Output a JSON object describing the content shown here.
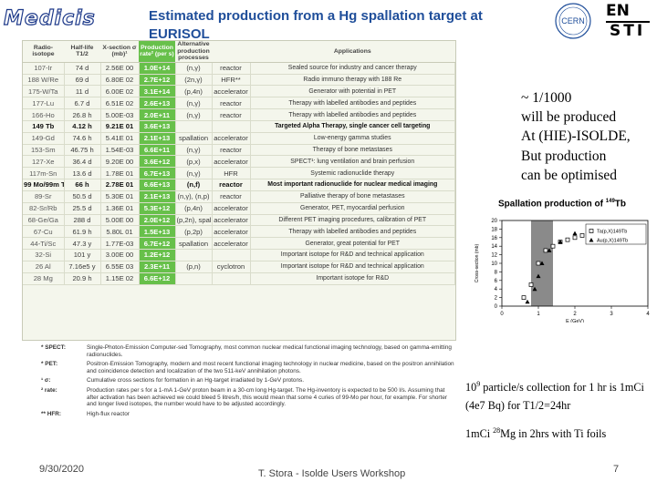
{
  "header": {
    "logo_left_text": "Medicis",
    "title": "Estimated production from a Hg spallation target at EURISOL",
    "logo_cern_text": "CERN",
    "logo_right_line1": "EN",
    "logo_right_line2": "STI"
  },
  "table": {
    "headers": [
      "Radio-isotope",
      "Half-life T1/2",
      "X-section σ (mb)¹",
      "Production rate² (per s)",
      "Alternative production processes",
      "",
      "Applications"
    ],
    "rows": [
      [
        "107-Ir",
        "74 d",
        "2.56E 00",
        "1.0E+14",
        "(n,γ)",
        "reactor",
        "Sealed source for industry and cancer therapy"
      ],
      [
        "188 W/Re",
        "69 d",
        "6.80E 02",
        "2.7E+12",
        "(2n,γ)",
        "HFR**",
        "Radio immuno therapy with 188 Re"
      ],
      [
        "175-W/Ta",
        "11 d",
        "6.00E 02",
        "3.1E+14",
        "(p,4n)",
        "accelerator",
        "Generator with potential in PET"
      ],
      [
        "177-Lu",
        "6.7 d",
        "6.51E 02",
        "2.6E+13",
        "(n,γ)",
        "reactor",
        "Therapy with labelled antibodies and peptides"
      ],
      [
        "166-Ho",
        "26.8 h",
        "5.00E-03",
        "2.0E+11",
        "(n,γ)",
        "reactor",
        "Therapy with labelled antibodies and peptides"
      ],
      [
        "149 Tb",
        "4.12 h",
        "9.21E 01",
        "3.6E+13",
        "",
        "",
        "Targeted Alpha Therapy, single cancer cell targeting"
      ],
      [
        "149-Gd",
        "74.6 h",
        "5.41E 01",
        "2.1E+13",
        "spallation",
        "accelerator",
        "Low-energy gamma studies"
      ],
      [
        "153-Sm",
        "46.75 h",
        "1.54E-03",
        "6.6E+11",
        "(n,γ)",
        "reactor",
        "Therapy of bone metastases"
      ],
      [
        "127-Xe",
        "36.4 d",
        "9.20E 00",
        "3.6E+12",
        "(p,x)",
        "accelerator",
        "SPECT¹: lung ventilation and brain perfusion"
      ],
      [
        "117m-Sn",
        "13.6 d",
        "1.78E 01",
        "6.7E+13",
        "(n,γ)",
        "HFR",
        "Systemic radionuclide therapy"
      ],
      [
        "99 Mo/99m Tc",
        "66 h",
        "2.78E 01",
        "6.6E+13",
        "(n,f)",
        "reactor",
        "Most important radionuclide for nuclear medical imaging"
      ],
      [
        "89-Sr",
        "50.5 d",
        "5.30E 01",
        "2.1E+13",
        "(n,γ), (n,p)",
        "reactor",
        "Palliative therapy of bone metastases"
      ],
      [
        "82-Sr/Rb",
        "25.5 d",
        "1.36E 01",
        "5.3E+12",
        "(p,4n)",
        "accelerator",
        "Generator, PET, myocardial perfusion"
      ],
      [
        "68-Ge/Ga",
        "288 d",
        "5.00E 00",
        "2.0E+12",
        "(p,2n), spall",
        "accelerator",
        "Different PET imaging procedures, calibration of PET"
      ],
      [
        "67-Cu",
        "61.9 h",
        "5.80L 01",
        "1.5E+13",
        "(p,2p)",
        "accelerator",
        "Therapy with labelled antibodies and peptides"
      ],
      [
        "44-Ti/Sc",
        "47.3 y",
        "1.77E-03",
        "6.7E+12",
        "spallation",
        "accelerator",
        "Generator, great potential for PET"
      ],
      [
        "32-Si",
        "101 y",
        "3.00E 00",
        "1.2E+12",
        "",
        "",
        "Important isotope for R&D and technical application"
      ],
      [
        "26 Al",
        "7.16e5 y",
        "6.55E 03",
        "2.3E+11",
        "(p,n)",
        "cyclotron",
        "Important isotope for R&D and technical application"
      ],
      [
        "28 Mg",
        "20.9 h",
        "1.15E 02",
        "6.6E+12",
        "",
        "",
        "Important isotope for R&D"
      ]
    ]
  },
  "notes": [
    {
      "key": "* SPECT:",
      "text": "Single-Photon-Emission Computer-sed Tomography, most common nuclear medical functional imaging technology, based on gamma-emitting radionuclides."
    },
    {
      "key": "* PET:",
      "text": "Positron-Emission Tomography, modern and most recent functional imaging technology in nuclear medicine, based on the positron annihilation and coincidence detection and localization of the two 511-keV annihilation photons."
    },
    {
      "key": "¹ σ:",
      "text": "Cumulative cross sections for formation in an Hg-target irradiated by 1-GeV protons."
    },
    {
      "key": "² rate:",
      "text": "Production rates per s for a 1-mA 1-GeV proton beam in a 30-cm long Hg-target. The Hg-inventory is expected to be 500 l/s. Assuming that after activation has been achieved we could bleed 5 litres/h, this would mean that some 4 curies of 99-Mo per hour, for example. For shorter and longer lived isotopes, the number would have to be adjusted accordingly."
    },
    {
      "key": "** HFR:",
      "text": "High-flux reactor"
    }
  ],
  "side_note": [
    "~ 1/1000",
    "will be produced",
    "At (HIE)-ISOLDE,",
    "But production",
    "can be optimised"
  ],
  "collection": {
    "pre": "10",
    "sup": "9",
    "post": " particle/s collection for 1 hr is 1mCi (4e7 Bq) for T1/2=24hr",
    "mg_pre": "1mCi ",
    "mg_sup": "28",
    "mg_post": "Mg in 2hrs with Ti foils"
  },
  "chart_data": {
    "type": "scatter",
    "title_pre": "Spallation production of ",
    "title_sup": "149",
    "title_post": "Tb",
    "xlabel": "E (GeV)",
    "ylabel": "Cross-section (mb)",
    "xlim": [
      0,
      4
    ],
    "ylim": [
      0,
      20
    ],
    "xticks": [
      0,
      1,
      2,
      3,
      4
    ],
    "yticks": [
      0,
      2,
      4,
      6,
      8,
      10,
      12,
      14,
      16,
      18,
      20
    ],
    "shaded_x": [
      0.8,
      1.4
    ],
    "legend_position": "top-right",
    "series": [
      {
        "name": "Ta(p,X)149Tb",
        "marker": "square",
        "x": [
          0.6,
          0.8,
          1.0,
          1.2,
          1.4,
          1.6,
          1.8,
          2.0,
          2.2,
          2.4
        ],
        "y": [
          2,
          5,
          10,
          13,
          14,
          15,
          15.5,
          16,
          16.5,
          17
        ]
      },
      {
        "name": "Au(p,X)149Tb",
        "marker": "triangle",
        "x": [
          0.7,
          0.9,
          1.0,
          1.1,
          1.3,
          1.6,
          2.0,
          2.5,
          3.0,
          3.6
        ],
        "y": [
          1,
          4,
          7,
          10,
          13,
          15,
          17,
          17.5,
          18,
          18
        ]
      }
    ]
  },
  "footer": {
    "date": "9/30/2020",
    "author": "T. Stora - Isolde Users Workshop",
    "page": "7"
  }
}
